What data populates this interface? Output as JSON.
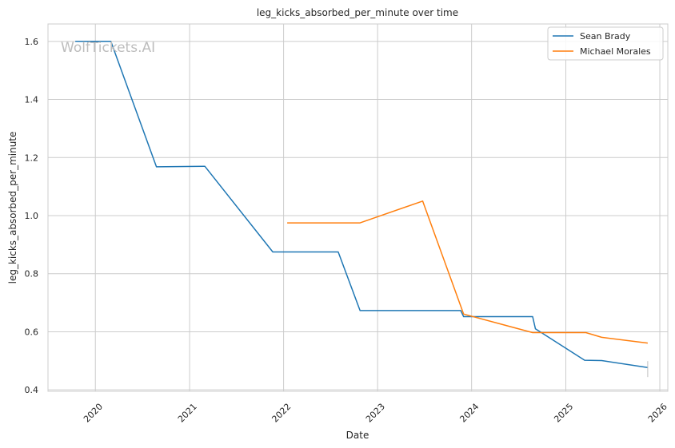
{
  "chart_data": {
    "type": "line",
    "title": "leg_kicks_absorbed_per_minute over time",
    "xlabel": "Date",
    "ylabel": "leg_kicks_absorbed_per_minute",
    "watermark": "WolfTickets.AI",
    "x_ticks": [
      "2020",
      "2021",
      "2022",
      "2023",
      "2024",
      "2025",
      "2026"
    ],
    "y_ticks": [
      "0.4",
      "0.6",
      "0.8",
      "1.0",
      "1.2",
      "1.4",
      "1.6"
    ],
    "xlim": [
      "2019-07-01",
      "2026-02-01"
    ],
    "ylim": [
      0.395,
      1.66
    ],
    "grid": true,
    "legend_position": "top-right",
    "series": [
      {
        "name": "Sean Brady",
        "color": "#1f77b4",
        "points": [
          [
            "2019-10-15",
            1.6
          ],
          [
            "2020-03-01",
            1.6
          ],
          [
            "2020-08-25",
            1.168
          ],
          [
            "2021-03-01",
            1.17
          ],
          [
            "2021-11-20",
            0.875
          ],
          [
            "2022-08-01",
            0.875
          ],
          [
            "2022-10-25",
            0.673
          ],
          [
            "2023-11-20",
            0.673
          ],
          [
            "2023-12-01",
            0.652
          ],
          [
            "2024-08-25",
            0.652
          ],
          [
            "2024-09-05",
            0.61
          ],
          [
            "2025-03-15",
            0.502
          ],
          [
            "2025-05-20",
            0.501
          ],
          [
            "2025-11-15",
            0.477
          ]
        ]
      },
      {
        "name": "Michael Morales",
        "color": "#ff7f0e",
        "points": [
          [
            "2022-01-15",
            0.975
          ],
          [
            "2022-10-25",
            0.975
          ],
          [
            "2023-06-25",
            1.05
          ],
          [
            "2023-12-01",
            0.661
          ],
          [
            "2024-08-25",
            0.597
          ],
          [
            "2025-03-20",
            0.597
          ],
          [
            "2025-05-20",
            0.581
          ],
          [
            "2025-11-15",
            0.561
          ]
        ]
      }
    ]
  }
}
